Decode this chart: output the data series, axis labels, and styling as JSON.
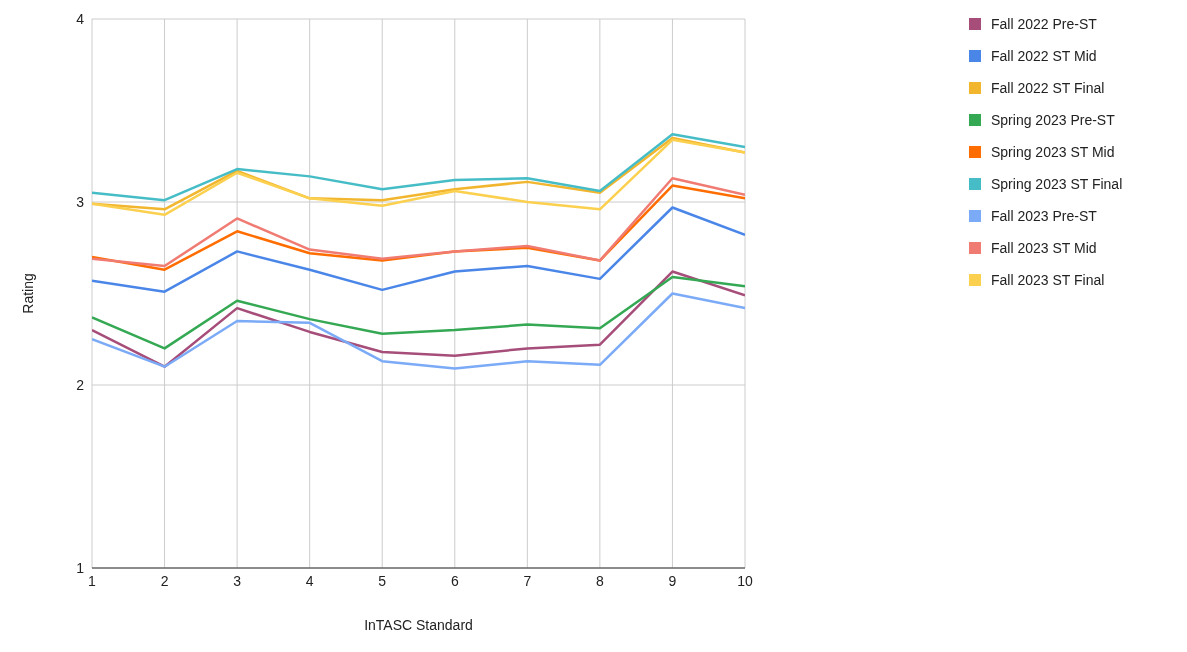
{
  "chart_data": {
    "type": "line",
    "xlabel": "InTASC Standard",
    "ylabel": "Rating",
    "x": [
      1,
      2,
      3,
      4,
      5,
      6,
      7,
      8,
      9,
      10
    ],
    "xlim": [
      1,
      10
    ],
    "xticks": [
      1,
      2,
      3,
      4,
      5,
      6,
      7,
      8,
      9,
      10
    ],
    "ylim": [
      1,
      4
    ],
    "yticks": [
      1,
      2,
      3,
      4
    ],
    "grid": true,
    "legend": "top right",
    "marker": "none",
    "line_style": "solid",
    "series": [
      {
        "name": "Fall 2022 Pre-ST",
        "color": "#a64d79",
        "values": [
          2.3,
          2.1,
          2.42,
          2.29,
          2.18,
          2.16,
          2.2,
          2.22,
          2.62,
          2.49
        ]
      },
      {
        "name": "Fall 2022 ST Mid",
        "color": "#4a86e8",
        "values": [
          2.57,
          2.51,
          2.73,
          2.63,
          2.52,
          2.62,
          2.65,
          2.58,
          2.97,
          2.82
        ]
      },
      {
        "name": "Fall 2022 ST Final",
        "color": "#f1b62e",
        "values": [
          2.99,
          2.96,
          3.17,
          3.02,
          3.01,
          3.07,
          3.11,
          3.05,
          3.35,
          3.27
        ]
      },
      {
        "name": "Spring 2023 Pre-ST",
        "color": "#34a853",
        "values": [
          2.37,
          2.2,
          2.46,
          2.36,
          2.28,
          2.3,
          2.33,
          2.31,
          2.59,
          2.54
        ]
      },
      {
        "name": "Spring 2023 ST Mid",
        "color": "#ff6d01",
        "values": [
          2.7,
          2.63,
          2.84,
          2.72,
          2.68,
          2.73,
          2.75,
          2.68,
          3.09,
          3.02
        ]
      },
      {
        "name": "Spring 2023 ST Final",
        "color": "#46bdc6",
        "values": [
          3.05,
          3.01,
          3.18,
          3.14,
          3.07,
          3.12,
          3.13,
          3.06,
          3.37,
          3.3
        ]
      },
      {
        "name": "Fall 2023 Pre-ST",
        "color": "#7baaf7",
        "values": [
          2.25,
          2.1,
          2.35,
          2.34,
          2.13,
          2.09,
          2.13,
          2.11,
          2.5,
          2.42
        ]
      },
      {
        "name": "Fall 2023 ST Mid",
        "color": "#f07b72",
        "values": [
          2.69,
          2.65,
          2.91,
          2.74,
          2.69,
          2.73,
          2.76,
          2.68,
          3.13,
          3.04
        ]
      },
      {
        "name": "Fall 2023 ST Final",
        "color": "#fcd04f",
        "values": [
          2.99,
          2.93,
          3.16,
          3.02,
          2.98,
          3.06,
          3.0,
          2.96,
          3.34,
          3.27
        ]
      }
    ]
  }
}
